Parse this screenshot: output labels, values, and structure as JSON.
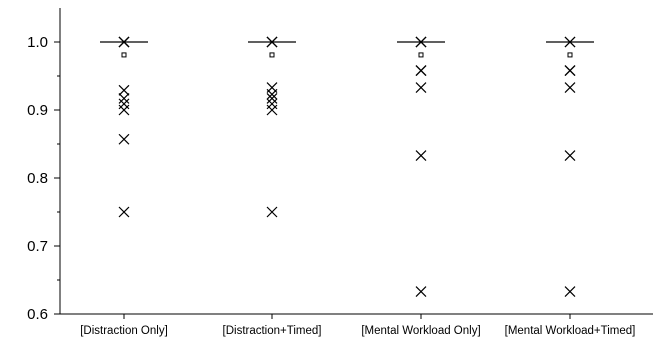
{
  "chart_data": {
    "type": "scatter",
    "title": "",
    "xlabel": "",
    "ylabel": "",
    "ylim": [
      0.6,
      1.05
    ],
    "yticks": [
      0.6,
      0.7,
      0.8,
      0.9,
      1.0
    ],
    "ytick_labels": [
      "0.6",
      "0.7",
      "0.8",
      "0.9",
      "1.0"
    ],
    "categories": [
      "[Distraction Only]",
      "[Distraction+Timed]",
      "[Mental Workload Only]",
      "[Mental Workload+Timed]"
    ],
    "series": [
      {
        "marker": "x",
        "points": [
          [
            1.0,
            1.0,
            1.0,
            0.929,
            0.917,
            0.909,
            0.9,
            0.857,
            0.75
          ],
          [
            1.0,
            1.0,
            1.0,
            0.933,
            0.923,
            0.917,
            0.909,
            0.9,
            0.75
          ],
          [
            1.0,
            1.0,
            1.0,
            0.958,
            0.958,
            0.933,
            0.833,
            0.633
          ],
          [
            1.0,
            1.0,
            0.958,
            0.958,
            0.933,
            0.833,
            0.633
          ]
        ]
      },
      {
        "marker": "median-line",
        "values": [
          1.0,
          1.0,
          1.0,
          1.0
        ]
      },
      {
        "marker": "square",
        "values": [
          0.981,
          0.981,
          0.981,
          0.981
        ]
      }
    ],
    "grid": false,
    "legend": "none",
    "colors": {
      "marker": "#000000",
      "axis": "#000000"
    }
  }
}
